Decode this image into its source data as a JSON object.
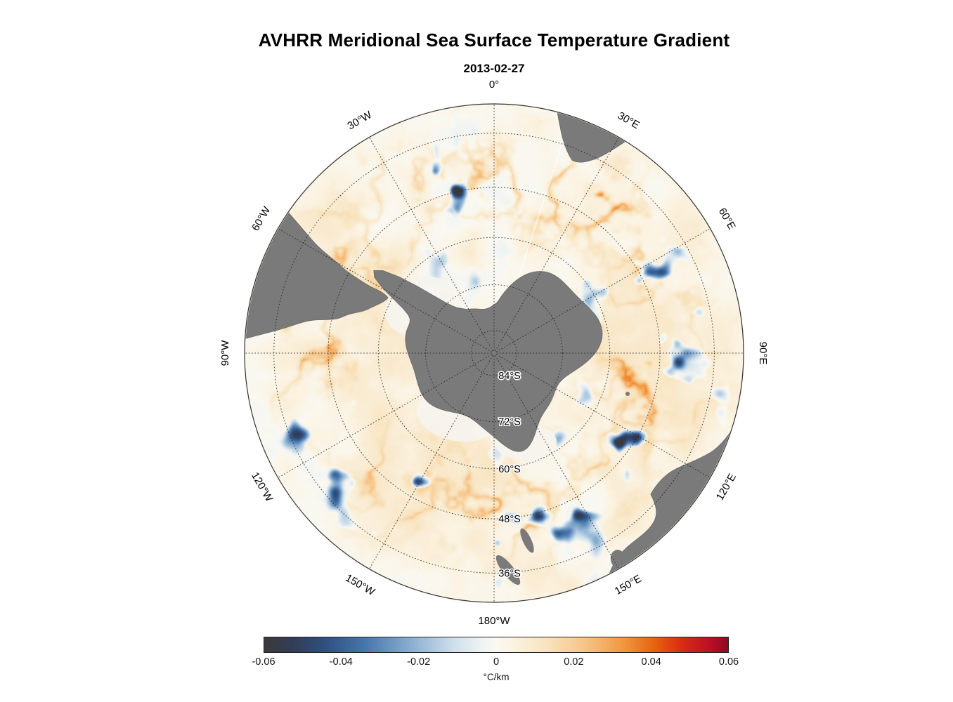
{
  "page": {
    "background": "#ffffff"
  },
  "chart_data": {
    "type": "heatmap",
    "title": "AVHRR Meridional Sea Surface Temperature Gradient",
    "subtitle": "2013-02-27",
    "projection": "south polar stereographic",
    "outer_latitude": "30°S",
    "value_range": [
      -0.06,
      0.06
    ],
    "lat_labels": [
      {
        "lat_deg_s": 84,
        "text": "84°S"
      },
      {
        "lat_deg_s": 72,
        "text": "72°S"
      },
      {
        "lat_deg_s": 60,
        "text": "60°S"
      },
      {
        "lat_deg_s": 48,
        "text": "48°S"
      },
      {
        "lat_deg_s": 36,
        "text": "36°S"
      }
    ],
    "lon_labels": [
      {
        "angle_deg": 0,
        "text": "0°"
      },
      {
        "angle_deg": 30,
        "text": "30°E"
      },
      {
        "angle_deg": 60,
        "text": "60°E"
      },
      {
        "angle_deg": 90,
        "text": "90°E"
      },
      {
        "angle_deg": 120,
        "text": "120°E"
      },
      {
        "angle_deg": 150,
        "text": "150°E"
      },
      {
        "angle_deg": 180,
        "text": "180°W"
      },
      {
        "angle_deg": 210,
        "text": "150°W"
      },
      {
        "angle_deg": 240,
        "text": "120°W"
      },
      {
        "angle_deg": 270,
        "text": "90°W"
      },
      {
        "angle_deg": 300,
        "text": "60°W"
      },
      {
        "angle_deg": 330,
        "text": "30°W"
      }
    ],
    "colorbar": {
      "unit": "°C/km",
      "min": -0.06,
      "max": 0.06,
      "tick_labels": [
        "-0.06",
        "-0.04",
        "-0.02",
        "0",
        "0.02",
        "0.04",
        "0.06"
      ],
      "tick_values": [
        -0.06,
        -0.04,
        -0.02,
        0,
        0.02,
        0.04,
        0.06
      ],
      "stops": [
        {
          "t": 0.0,
          "color": "#3a3a3a"
        },
        {
          "t": 0.06,
          "color": "#323c55"
        },
        {
          "t": 0.13,
          "color": "#2f4f80"
        },
        {
          "t": 0.22,
          "color": "#4878ad"
        },
        {
          "t": 0.32,
          "color": "#8cb0d2"
        },
        {
          "t": 0.41,
          "color": "#cfe0ec"
        },
        {
          "t": 0.47,
          "color": "#eff3f2"
        },
        {
          "t": 0.5,
          "color": "#f9f8f2"
        },
        {
          "t": 0.53,
          "color": "#fbf4e5"
        },
        {
          "t": 0.61,
          "color": "#f8e3bd"
        },
        {
          "t": 0.69,
          "color": "#f7c488"
        },
        {
          "t": 0.77,
          "color": "#f29a43"
        },
        {
          "t": 0.84,
          "color": "#e6640f"
        },
        {
          "t": 0.9,
          "color": "#d92c12"
        },
        {
          "t": 0.96,
          "color": "#bd0f26"
        },
        {
          "t": 1.0,
          "color": "#8c0b22"
        }
      ]
    },
    "land_color": "#7a7a7a",
    "ice_color": "#f6f4ee",
    "grid_color": "#222222",
    "label_color": "#000000"
  }
}
